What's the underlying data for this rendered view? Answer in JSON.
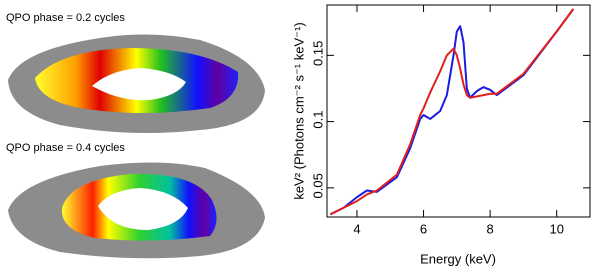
{
  "panels": [
    {
      "label": "QPO phase = 0.2 cycles",
      "color": "#1a1aff"
    },
    {
      "label": "QPO phase = 0.4 cycles",
      "color": "#e8201a"
    }
  ],
  "chart_data": {
    "type": "line",
    "xlabel": "Energy (keV)",
    "ylabel": "keV² (Photons cm⁻² s⁻¹ keV⁻¹)",
    "x": [
      3.2,
      3.6,
      4.0,
      4.3,
      4.6,
      5.2,
      5.6,
      5.9,
      6.0,
      6.2,
      6.5,
      6.7,
      6.9,
      7.0,
      7.1,
      7.2,
      7.3,
      7.4,
      7.6,
      7.8,
      8.0,
      8.2,
      9.0,
      10.0,
      10.5
    ],
    "series": [
      {
        "color": "#1c1ce0",
        "values": [
          0.03,
          0.035,
          0.043,
          0.048,
          0.047,
          0.058,
          0.08,
          0.102,
          0.105,
          0.102,
          0.108,
          0.12,
          0.15,
          0.168,
          0.172,
          0.16,
          0.125,
          0.118,
          0.123,
          0.126,
          0.124,
          0.12,
          0.135,
          0.168,
          0.185
        ]
      },
      {
        "color": "#e0201c",
        "values": [
          0.03,
          0.035,
          0.04,
          0.045,
          0.048,
          0.06,
          0.083,
          0.105,
          0.11,
          0.122,
          0.138,
          0.15,
          0.155,
          0.15,
          0.14,
          0.128,
          0.12,
          0.118,
          0.119,
          0.12,
          0.121,
          0.121,
          0.136,
          0.168,
          0.185
        ]
      }
    ],
    "xlim": [
      3.1,
      11
    ],
    "ylim": [
      0.028,
      0.188
    ],
    "xticks": [
      4,
      6,
      8,
      10
    ],
    "yticks": [
      0.05,
      0.1,
      0.15
    ]
  }
}
